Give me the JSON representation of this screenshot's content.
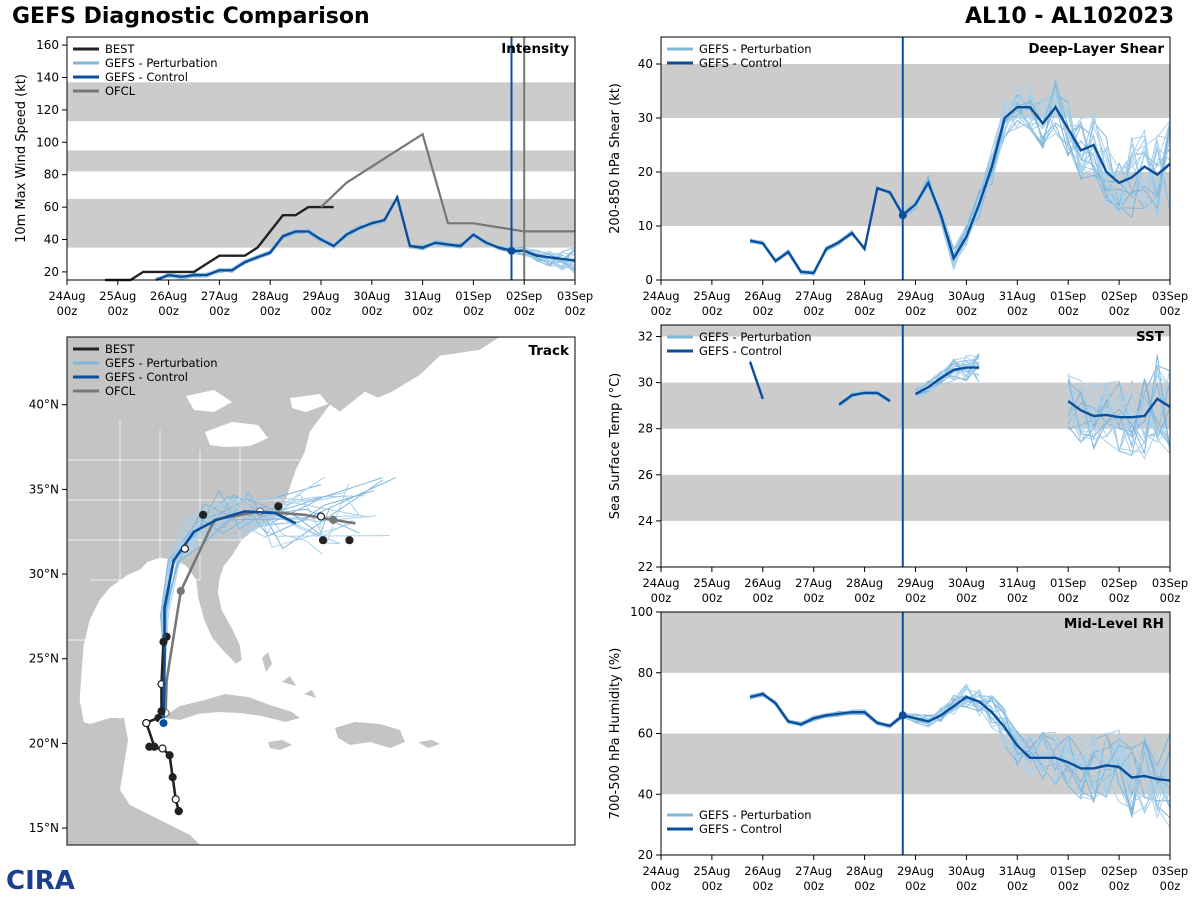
{
  "header": {
    "title": "GEFS Diagnostic Comparison",
    "storm": "AL10 - AL102023"
  },
  "logo": {
    "text": "CIRA"
  },
  "colors": {
    "best": "#222222",
    "perturbation": "#7fb6da",
    "control": "#0b4e9c",
    "ofcl": "#777777",
    "band": "#cccccc",
    "now": "#0b4e9c",
    "land": "#c4c4c4"
  },
  "time_axis": {
    "ticks": [
      {
        "day": "24Aug",
        "hour": "00z"
      },
      {
        "day": "25Aug",
        "hour": "00z"
      },
      {
        "day": "26Aug",
        "hour": "00z"
      },
      {
        "day": "27Aug",
        "hour": "00z"
      },
      {
        "day": "28Aug",
        "hour": "00z"
      },
      {
        "day": "29Aug",
        "hour": "00z"
      },
      {
        "day": "30Aug",
        "hour": "00z"
      },
      {
        "day": "31Aug",
        "hour": "00z"
      },
      {
        "day": "01Sep",
        "hour": "00z"
      },
      {
        "day": "02Sep",
        "hour": "00z"
      },
      {
        "day": "03Sep",
        "hour": "00z"
      }
    ]
  },
  "chart_data": [
    {
      "id": "intensity",
      "type": "line",
      "title": "Intensity",
      "ylabel": "10m Max Wind Speed (kt)",
      "xlim": [
        0,
        10
      ],
      "ylim": [
        15,
        165
      ],
      "yticks": [
        "20",
        "40",
        "60",
        "80",
        "100",
        "120",
        "140",
        "160"
      ],
      "bands": [
        [
          35,
          65
        ],
        [
          82,
          95
        ],
        [
          113,
          137
        ]
      ],
      "now": 8.75,
      "ofcl_start": 9.0,
      "legend": [
        "BEST",
        "GEFS - Perturbation",
        "GEFS - Control",
        "OFCL"
      ],
      "series": [
        {
          "name": "BEST",
          "x": [
            0.75,
            1,
            1.25,
            1.5,
            1.75,
            2,
            2.25,
            2.5,
            2.75,
            3,
            3.25,
            3.5,
            3.75,
            4,
            4.25,
            4.5,
            4.75,
            5,
            5.25
          ],
          "values": [
            15,
            15,
            15,
            20,
            20,
            20,
            20,
            20,
            25,
            30,
            30,
            30,
            35,
            45,
            55,
            55,
            60,
            60,
            60
          ]
        },
        {
          "name": "OFCL",
          "x": [
            5.0,
            5.5,
            6.0,
            7.0,
            7.5,
            8.0,
            9.0,
            10.0
          ],
          "values": [
            60,
            75,
            85,
            105,
            50,
            50,
            45,
            45
          ]
        },
        {
          "name": "GEFS - Control",
          "x": [
            1.75,
            2,
            2.25,
            2.5,
            2.75,
            3,
            3.25,
            3.5,
            3.75,
            4,
            4.25,
            4.5,
            4.75,
            5,
            5.25,
            5.5,
            5.75,
            6,
            6.25,
            6.5,
            6.75,
            7,
            7.25,
            7.5,
            7.75,
            8,
            8.25,
            8.5,
            8.75,
            9,
            9.25,
            9.5,
            9.75,
            10
          ],
          "values": [
            15,
            18,
            17,
            18,
            18,
            21,
            21,
            26,
            29,
            32,
            42,
            45,
            45,
            40,
            36,
            43,
            47,
            50,
            52,
            66,
            36,
            35,
            38,
            37,
            36,
            43,
            38,
            35,
            33,
            33,
            30,
            29,
            28,
            27
          ]
        }
      ],
      "ensemble_note": "GEFS - Perturbation members drawn around the control track"
    },
    {
      "id": "shear",
      "type": "line",
      "title": "Deep-Layer Shear",
      "ylabel": "200-850 hPa Shear (kt)",
      "xlim": [
        0,
        10
      ],
      "ylim": [
        0,
        45
      ],
      "yticks": [
        "0",
        "10",
        "20",
        "30",
        "40"
      ],
      "bands": [
        [
          10,
          20
        ],
        [
          30,
          40
        ]
      ],
      "now": 4.75,
      "legend": [
        "GEFS - Perturbation",
        "GEFS - Control"
      ],
      "series": [
        {
          "name": "GEFS - Control",
          "x": [
            1.75,
            2,
            2.25,
            2.5,
            2.75,
            3,
            3.25,
            3.5,
            3.75,
            4,
            4.25,
            4.5,
            4.75,
            5,
            5.25,
            5.5,
            5.75,
            6,
            6.25,
            6.5,
            6.75,
            7,
            7.25,
            7.5,
            7.75,
            8,
            8.25,
            8.5,
            8.75,
            9,
            9.25,
            9.5,
            9.75,
            10
          ],
          "values": [
            7.3,
            6.8,
            3.5,
            5.2,
            1.5,
            1.3,
            5.8,
            7,
            8.7,
            5.8,
            17,
            16.2,
            12,
            14,
            18,
            12,
            4,
            8,
            14,
            21,
            30,
            32,
            32,
            29,
            32,
            28,
            24,
            25,
            20,
            18,
            19,
            21,
            19.5,
            21.5
          ]
        }
      ]
    },
    {
      "id": "sst",
      "type": "line",
      "title": "SST",
      "ylabel": "Sea Surface Temp (°C)",
      "xlim": [
        0,
        10
      ],
      "ylim": [
        22,
        32.5
      ],
      "yticks": [
        "22",
        "24",
        "26",
        "28",
        "30",
        "32"
      ],
      "bands": [
        [
          24,
          26
        ],
        [
          28,
          30
        ],
        [
          32,
          32.5
        ]
      ],
      "now": 4.75,
      "legend": [
        "GEFS - Perturbation",
        "GEFS - Control"
      ],
      "series": [
        {
          "name": "GEFS - Control",
          "segments": [
            {
              "x": [
                1.75,
                2.0
              ],
              "values": [
                30.9,
                29.3
              ]
            },
            {
              "x": [
                3.5,
                3.75,
                4.0,
                4.25,
                4.5
              ],
              "values": [
                29.05,
                29.45,
                29.55,
                29.55,
                29.2
              ]
            },
            {
              "x": [
                5.0,
                5.25,
                5.5,
                5.75,
                6.0,
                6.25
              ],
              "values": [
                29.5,
                29.8,
                30.2,
                30.55,
                30.65,
                30.65
              ]
            },
            {
              "x": [
                8.0,
                8.25,
                8.5,
                8.75,
                9.0,
                9.25,
                9.5,
                9.75,
                10.0
              ],
              "values": [
                29.2,
                28.8,
                28.55,
                28.6,
                28.5,
                28.5,
                28.55,
                29.3,
                28.95
              ]
            }
          ]
        }
      ]
    },
    {
      "id": "rh",
      "type": "line",
      "title": "Mid-Level RH",
      "ylabel": "700-500 hPa Humidity (%)",
      "xlim": [
        0,
        10
      ],
      "ylim": [
        20,
        100
      ],
      "yticks": [
        "20",
        "40",
        "60",
        "80",
        "100"
      ],
      "bands": [
        [
          40,
          60
        ],
        [
          80,
          100
        ]
      ],
      "now": 4.75,
      "legend": [
        "GEFS - Perturbation",
        "GEFS - Control"
      ],
      "series": [
        {
          "name": "GEFS - Control",
          "x": [
            1.75,
            2,
            2.25,
            2.5,
            2.75,
            3,
            3.25,
            3.5,
            3.75,
            4,
            4.25,
            4.5,
            4.75,
            5,
            5.25,
            5.5,
            5.75,
            6,
            6.25,
            6.5,
            6.75,
            7,
            7.25,
            7.5,
            7.75,
            8,
            8.25,
            8.5,
            8.75,
            9,
            9.25,
            9.5,
            9.75,
            10
          ],
          "values": [
            72,
            73,
            70,
            64,
            63,
            65,
            66,
            66.5,
            67,
            67,
            63.5,
            62.5,
            66,
            65,
            64,
            66,
            69,
            72,
            70.5,
            67,
            62,
            56,
            52,
            52,
            52,
            50.5,
            48.5,
            48.5,
            49.5,
            49,
            45.5,
            46,
            45,
            44.5
          ]
        }
      ]
    },
    {
      "id": "track",
      "type": "scatter",
      "title": "Track",
      "xlim": [
        -95,
        -45
      ],
      "ylim": [
        14,
        44
      ],
      "lat_ticks": [
        "15°N",
        "20°N",
        "25°N",
        "30°N",
        "35°N",
        "40°N"
      ],
      "legend": [
        "BEST",
        "GEFS - Perturbation",
        "GEFS - Control",
        "OFCL"
      ],
      "series": [
        {
          "name": "BEST",
          "lon": [
            -84.0,
            -84.3,
            -84.6,
            -84.9,
            -85.6,
            -86.0,
            -86.4,
            -86.9,
            -87.2,
            -86.9,
            -86.0,
            -85.7,
            -85.7,
            -85.5,
            -85.2
          ],
          "lat": [
            16.0,
            16.7,
            18.0,
            19.3,
            19.7,
            19.7,
            19.8,
            20.7,
            21.2,
            21.3,
            21.5,
            22.0,
            23.5,
            26.0,
            26.3
          ]
        },
        {
          "name": "OFCL",
          "lon": [
            -85.3,
            -85.2,
            -83.8,
            -80.5,
            -76.0,
            -71.6,
            -68.8,
            -66.6
          ],
          "lat": [
            21.8,
            23.7,
            29.0,
            33.2,
            33.7,
            33.5,
            33.2,
            33.0
          ]
        },
        {
          "name": "GEFS - Control",
          "lon": [
            -85.5,
            -85.4,
            -85.4,
            -84.5,
            -82.5,
            -80.3,
            -77.5,
            -74.5,
            -72.5
          ],
          "lat": [
            21.2,
            25.0,
            28.0,
            30.8,
            32.5,
            33.2,
            33.7,
            33.6,
            33.0
          ]
        }
      ],
      "best_fixes": {
        "lon": [
          -84.0,
          -84.3,
          -84.9,
          -86.9,
          -87.2,
          -85.7,
          -85.5,
          -83.4,
          -81.6,
          -74.2,
          -70.0,
          -67.2,
          -69.8
        ],
        "lat": [
          16.0,
          16.7,
          19.3,
          19.8,
          21.2,
          21.9,
          26.0,
          31.5,
          33.5,
          34.0,
          33.4,
          32.0,
          32.0
        ]
      }
    }
  ]
}
